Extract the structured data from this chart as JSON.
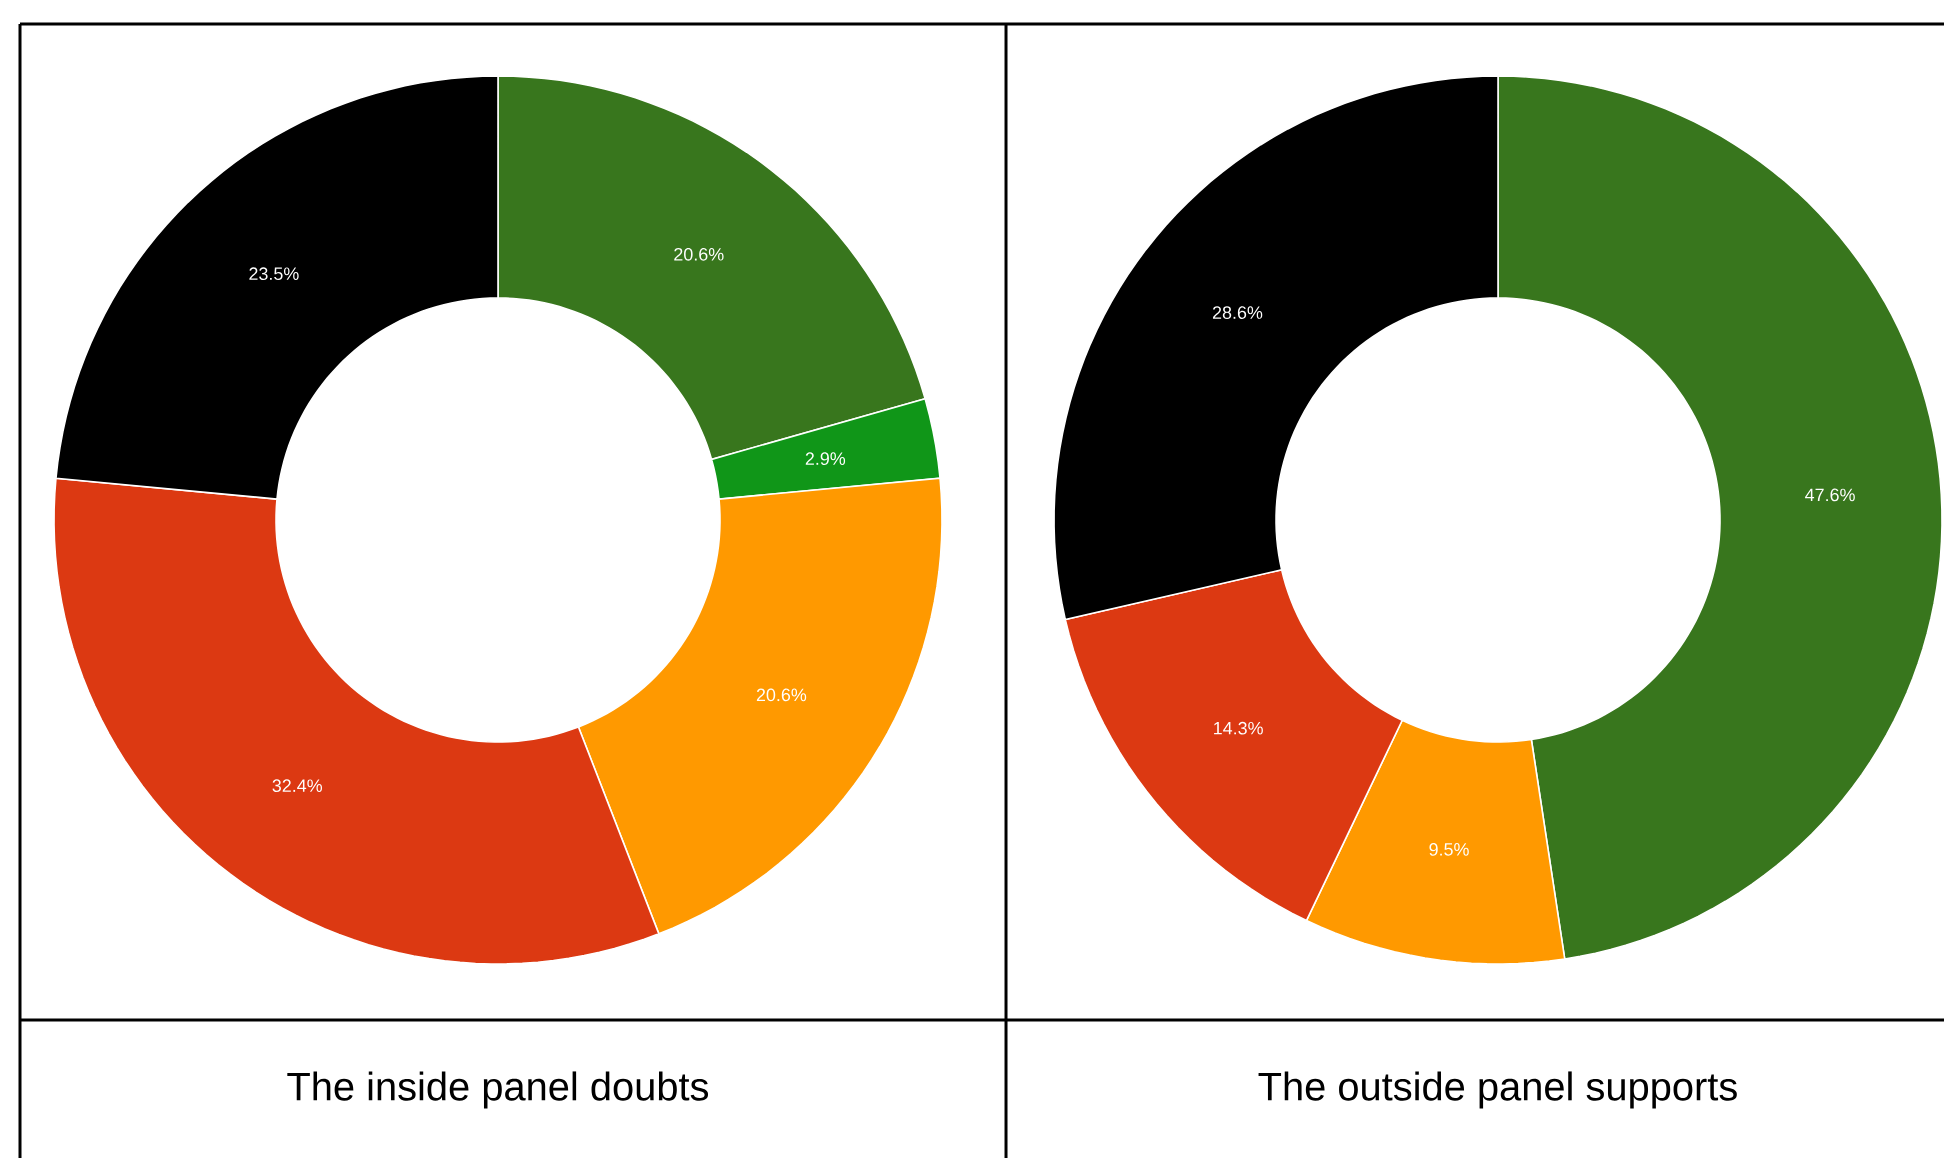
{
  "chart_data": [
    {
      "type": "donut",
      "title": "The inside panel doubts",
      "categories": [
        null,
        null,
        null,
        null,
        null
      ],
      "values": [
        20.6,
        2.9,
        20.6,
        32.4,
        23.5
      ],
      "colors": [
        "#38761d",
        "#109618",
        "#ff9900",
        "#dc3912",
        "#000000"
      ],
      "value_labels": [
        "20.6%",
        "2.9%",
        "20.6%",
        "32.4%",
        "23.5%"
      ]
    },
    {
      "type": "donut",
      "title": "The outside panel supports",
      "categories": [
        null,
        null,
        null,
        null
      ],
      "values": [
        47.6,
        9.5,
        14.3,
        28.6
      ],
      "colors": [
        "#38761d",
        "#ff9900",
        "#dc3912",
        "#000000"
      ],
      "value_labels": [
        "47.6%",
        "9.5%",
        "14.3%",
        "28.6%"
      ]
    }
  ]
}
